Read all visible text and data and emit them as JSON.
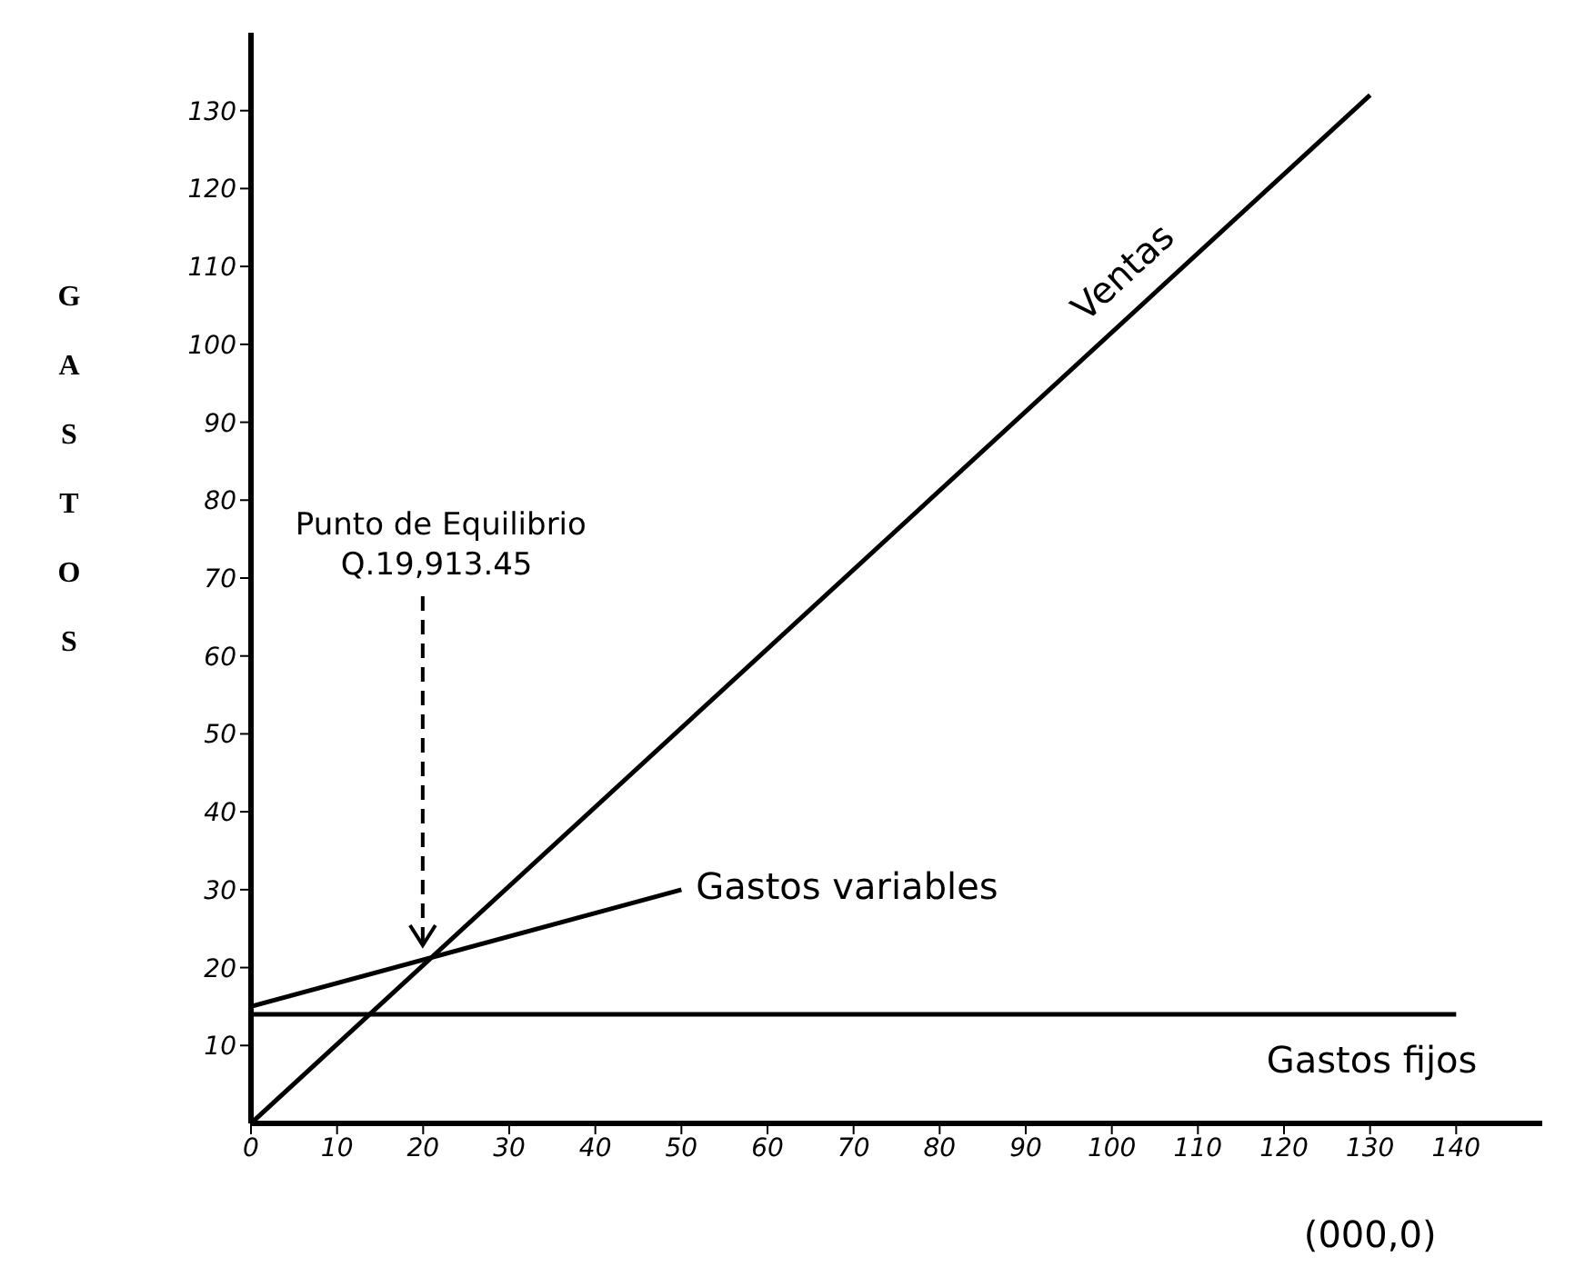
{
  "chart_data": {
    "type": "line",
    "ylabel": "GASTOS",
    "xlabel": "(000,0)",
    "xlim": [
      0,
      150
    ],
    "ylim": [
      0,
      140
    ],
    "xticks": [
      0,
      10,
      20,
      30,
      40,
      50,
      60,
      70,
      80,
      90,
      100,
      110,
      120,
      130,
      140
    ],
    "yticks": [
      10,
      20,
      30,
      40,
      50,
      60,
      70,
      80,
      90,
      100,
      110,
      120,
      130
    ],
    "series": [
      {
        "name": "Ventas",
        "color": "#000000",
        "x": [
          0,
          130
        ],
        "values": [
          0,
          132
        ]
      },
      {
        "name": "Gastos variables",
        "color": "#000000",
        "x": [
          0,
          50
        ],
        "values": [
          15,
          30
        ]
      },
      {
        "name": "Gastos fijos",
        "color": "#000000",
        "x": [
          0,
          140
        ],
        "values": [
          14,
          14
        ]
      }
    ],
    "annotations": [
      "Punto de Equilibrio\nQ.19,913.45"
    ],
    "legend": false,
    "grid": false,
    "marker": "none",
    "line_style": "solid"
  }
}
